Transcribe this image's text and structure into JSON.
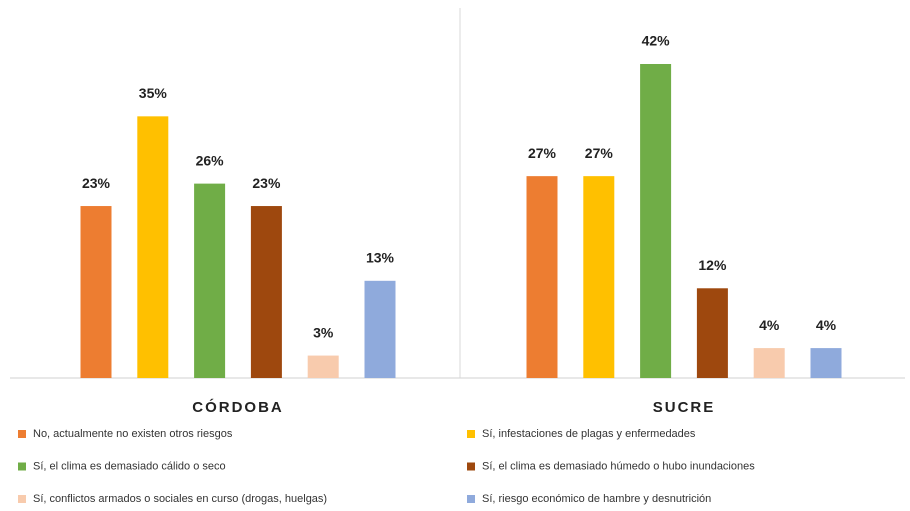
{
  "chart_data": {
    "type": "bar",
    "categories": [
      "CÓRDOBA",
      "SUCRE"
    ],
    "series": [
      {
        "name": "No, actualmente no existen otros riesgos",
        "color": "#ed7d31",
        "values": [
          23,
          27
        ],
        "value_labels": [
          "23%",
          "27%"
        ]
      },
      {
        "name": "Sí, infestaciones de plagas y enfermedades",
        "color": "#ffc000",
        "values": [
          35,
          27
        ],
        "value_labels": [
          "35%",
          "27%"
        ]
      },
      {
        "name": "Sí, el clima es demasiado cálido o seco",
        "color": "#70ad47",
        "values": [
          26,
          42
        ],
        "value_labels": [
          "26%",
          "42%"
        ]
      },
      {
        "name": "Sí, el clima es demasiado húmedo o hubo inundaciones",
        "color": "#9e480e",
        "values": [
          23,
          12
        ],
        "value_labels": [
          "23%",
          "12%"
        ]
      },
      {
        "name": "Sí, conflictos armados o sociales en curso (drogas, huelgas)",
        "color": "#f8cbad",
        "values": [
          3,
          4
        ],
        "value_labels": [
          "3%",
          "4%"
        ]
      },
      {
        "name": "Sí, riesgo económico de hambre y desnutrición",
        "color": "#8faadc",
        "values": [
          13,
          4
        ],
        "value_labels": [
          "13%",
          "4%"
        ]
      }
    ]
  }
}
